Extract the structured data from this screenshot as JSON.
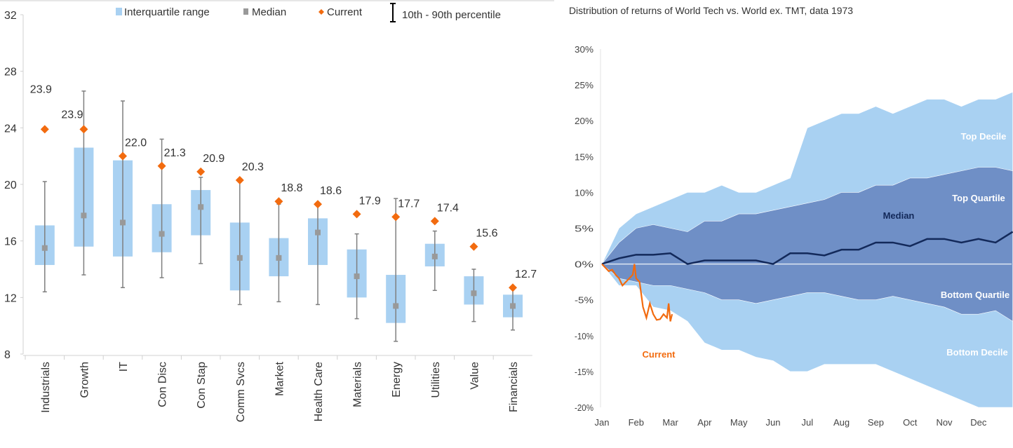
{
  "chart_data": [
    {
      "type": "box",
      "ylim": [
        8,
        32
      ],
      "yticks": [
        8,
        12,
        16,
        20,
        24,
        28,
        32
      ],
      "grid": false,
      "legend_position": "top",
      "legend": [
        "Interquartile range",
        "Median",
        "Current",
        "10th - 90th percentile"
      ],
      "colors": {
        "iqr": "#a9d1f2",
        "median": "#999999",
        "current": "#f26b0f",
        "whisker": "#7f7f7f"
      },
      "categories": [
        "Industrials",
        "Growth",
        "IT",
        "Con Disc",
        "Con Stap",
        "Comm Svcs",
        "Market",
        "Health Care",
        "Materials",
        "Energy",
        "Utilities",
        "Value",
        "Financials"
      ],
      "p10": [
        12.4,
        13.6,
        12.7,
        13.4,
        14.4,
        11.5,
        11.7,
        11.5,
        10.5,
        8.9,
        12.5,
        10.3,
        9.7
      ],
      "q1": [
        14.3,
        15.6,
        14.9,
        15.2,
        16.4,
        12.5,
        13.5,
        14.3,
        12.0,
        10.2,
        14.2,
        11.5,
        10.6
      ],
      "median": [
        15.5,
        17.8,
        17.3,
        16.5,
        18.4,
        14.8,
        14.8,
        16.6,
        13.5,
        11.4,
        14.9,
        12.3,
        11.4
      ],
      "q3": [
        17.1,
        22.6,
        21.7,
        18.6,
        19.6,
        17.3,
        16.2,
        17.6,
        15.4,
        13.6,
        15.8,
        13.5,
        12.2
      ],
      "p90": [
        20.2,
        26.6,
        25.9,
        23.2,
        20.5,
        20.2,
        18.6,
        18.6,
        16.5,
        19.0,
        16.7,
        14.0,
        12.6
      ],
      "current": [
        23.9,
        23.9,
        22.0,
        21.3,
        20.9,
        20.3,
        18.8,
        18.6,
        17.9,
        17.7,
        17.4,
        15.6,
        12.7
      ],
      "current_labels": [
        "23.9",
        "23.9",
        "22.0",
        "21.3",
        "20.9",
        "20.3",
        "18.8",
        "18.6",
        "17.9",
        "17.7",
        "17.4",
        "15.6",
        "12.7"
      ]
    },
    {
      "type": "area",
      "title": "Distribution of returns of World Tech vs. World ex. TMT, data 1973",
      "ylim": [
        -20,
        30
      ],
      "yticks": [
        "-20%",
        "-15%",
        "-10%",
        "-5%",
        "0%",
        "5%",
        "10%",
        "15%",
        "20%",
        "25%",
        "30%"
      ],
      "ytick_values": [
        -20,
        -15,
        -10,
        -5,
        0,
        5,
        10,
        15,
        20,
        25,
        30
      ],
      "xticks": [
        "Jan",
        "Feb",
        "Mar",
        "Apr",
        "May",
        "Jun",
        "Jul",
        "Aug",
        "Sep",
        "Oct",
        "Nov",
        "Dec"
      ],
      "x_months": [
        0,
        0.5,
        1,
        1.5,
        2,
        2.5,
        3,
        3.5,
        4,
        4.5,
        5,
        5.5,
        6,
        6.5,
        7,
        7.5,
        8,
        8.5,
        9,
        9.5,
        10,
        10.5,
        11,
        11.5,
        12
      ],
      "colors": {
        "decile": "#a9d1f2",
        "quartile": "#6f8fc6",
        "median": "#13295a",
        "current": "#f26b0f",
        "zero": "#dde6f2"
      },
      "series": [
        {
          "name": "Top Decile",
          "values": [
            0,
            5,
            7,
            8,
            9,
            10,
            10,
            11,
            10,
            10,
            11,
            12,
            19,
            20,
            21,
            21,
            22,
            21,
            22,
            23,
            23,
            22,
            23,
            23,
            24
          ]
        },
        {
          "name": "Top Quartile",
          "values": [
            0,
            3,
            5,
            5.5,
            5,
            4.5,
            6,
            6,
            7,
            7,
            7.5,
            8,
            8.5,
            9,
            10,
            10,
            11,
            11,
            12,
            12,
            12.5,
            13,
            13.5,
            13.5,
            13
          ]
        },
        {
          "name": "Median",
          "values": [
            0,
            0.8,
            1.3,
            1.3,
            1.5,
            0,
            0.5,
            0.5,
            0.5,
            0.5,
            0,
            1.5,
            1.5,
            1.2,
            2,
            2,
            3,
            3,
            2.5,
            3.5,
            3.5,
            3,
            3.5,
            3,
            4.5
          ]
        },
        {
          "name": "Bottom Quartile",
          "values": [
            0,
            -2,
            -2.5,
            -3,
            -3,
            -3.5,
            -4,
            -5,
            -5,
            -5.5,
            -5,
            -4.5,
            -4,
            -4,
            -4.5,
            -5,
            -5,
            -4.5,
            -5,
            -5.5,
            -6,
            -7,
            -7,
            -6.5,
            -8
          ]
        },
        {
          "name": "Bottom Decile",
          "values": [
            0,
            -3,
            -3,
            -6,
            -6.5,
            -8,
            -11,
            -12,
            -12,
            -13,
            -13.5,
            -15,
            -15,
            -14,
            -14,
            -14,
            -14,
            -15,
            -16,
            -17,
            -18,
            -19,
            -20,
            -20,
            -20
          ]
        }
      ],
      "current": {
        "name": "Current",
        "x_months": [
          0,
          0.1,
          0.2,
          0.3,
          0.4,
          0.5,
          0.6,
          0.7,
          0.8,
          0.9,
          0.95,
          1.0,
          1.1,
          1.2,
          1.3,
          1.4,
          1.5,
          1.6,
          1.7,
          1.8,
          1.9,
          1.95,
          2.0,
          2.05
        ],
        "values": [
          0,
          -0.5,
          -1,
          -0.8,
          -1.5,
          -2,
          -3,
          -2.5,
          -2,
          -1.5,
          0,
          -2,
          -2.5,
          -6,
          -7.5,
          -5.5,
          -7,
          -7.8,
          -7.7,
          -7,
          -7.5,
          -5.5,
          -8,
          -7
        ]
      }
    }
  ]
}
